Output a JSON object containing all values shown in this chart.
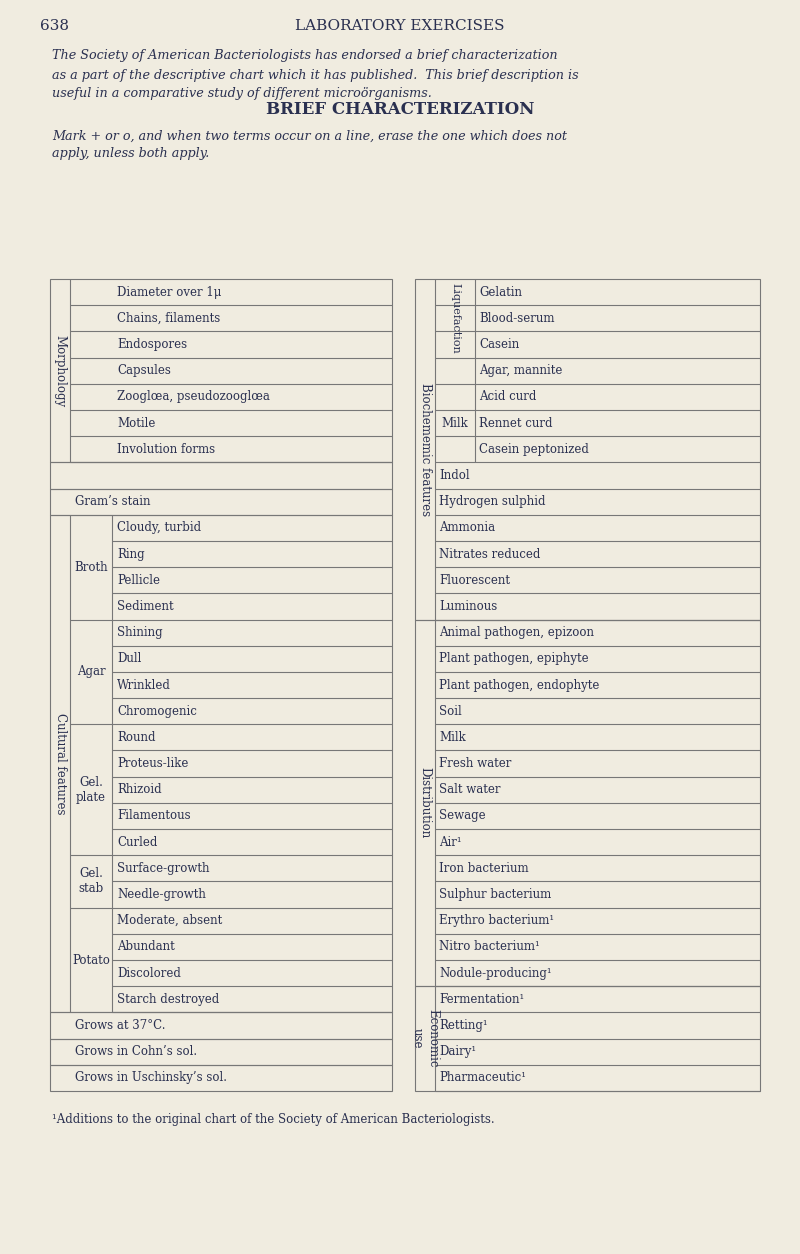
{
  "bg_color": "#f0ece0",
  "text_color": "#2a3050",
  "line_color": "#777777",
  "page_number": "638",
  "page_title": "LABORATORY EXERCISES",
  "intro_text": "The Society of American Bacteriologists has endorsed a brief characterization\nas a part of the descriptive chart which it has published.  This brief description is\nuseful in a comparative study of different microörganisms.",
  "section_title": "BRIEF CHARACTERIZATION",
  "instruction_text": "Mark + or o, and when two terms occur on a line, erase the one which does not\napply, unless both apply.",
  "footer_text": "¹Additions to the original chart of the Society of American Bacteriologists.",
  "left_table": {
    "outer_label": "Morphology",
    "outer_rows": [
      "Diameter over 1μ",
      "Chains, filaments",
      "Endospores",
      "Capsules",
      "Zooglœa, pseudozooglœa",
      "Motile",
      "Involution forms"
    ],
    "gap_row": true,
    "mid_row": "Gram’s stain",
    "cultural_label": "Cultural features",
    "cultural_groups": [
      {
        "group_label": "Broth",
        "rows": [
          "Cloudy, turbid",
          "Ring",
          "Pellicle",
          "Sediment"
        ]
      },
      {
        "group_label": "Agar",
        "rows": [
          "Shining",
          "Dull",
          "Wrinkled",
          "Chromogenic"
        ]
      },
      {
        "group_label": "Gel.\nplate",
        "rows": [
          "Round",
          "Proteus-like",
          "Rhizoid",
          "Filamentous",
          "Curled"
        ]
      },
      {
        "group_label": "Gel.\nstab",
        "rows": [
          "Surface-growth",
          "Needle-growth"
        ]
      },
      {
        "group_label": "Potato",
        "rows": [
          "Moderate, absent",
          "Abundant",
          "Discolored",
          "Starch destroyed"
        ]
      }
    ],
    "bottom_rows": [
      "Grows at 37°C.",
      "Grows in Cohn’s sol.",
      "Grows in Uschinsky’s sol."
    ]
  },
  "right_table": {
    "biochem_label": "Biochememic features",
    "liquefaction_label": "Liquefaction",
    "liquefaction_rows": [
      "Gelatin",
      "Blood-serum",
      "Casein"
    ],
    "agar_mannite_label": "Agar, mannite",
    "milk_label": "Milk",
    "milk_rows": [
      "Acid curd",
      "Rennet curd",
      "Casein peptonized"
    ],
    "biochem_bottom_rows": [
      "Indol",
      "Hydrogen sulphid",
      "Ammonia",
      "Nitrates reduced",
      "Fluorescent",
      "Luminous"
    ],
    "distribution_label": "Distribution",
    "dist_rows": [
      "Animal pathogen, epizoon",
      "Plant pathogen, epiphyte",
      "Plant pathogen, endophyte",
      "Soil",
      "Milk",
      "Fresh water",
      "Salt water",
      "Sewage",
      "Air¹",
      "Iron bacterium",
      "Sulphur bacterium",
      "Erythro bacterium¹",
      "Nitro bacterium¹",
      "Nodule-producing¹"
    ],
    "economic_label": "Economic\nuse",
    "economic_rows": [
      "Fermentation¹",
      "Retting¹",
      "Dairy¹",
      "Pharmaceutic¹"
    ]
  }
}
